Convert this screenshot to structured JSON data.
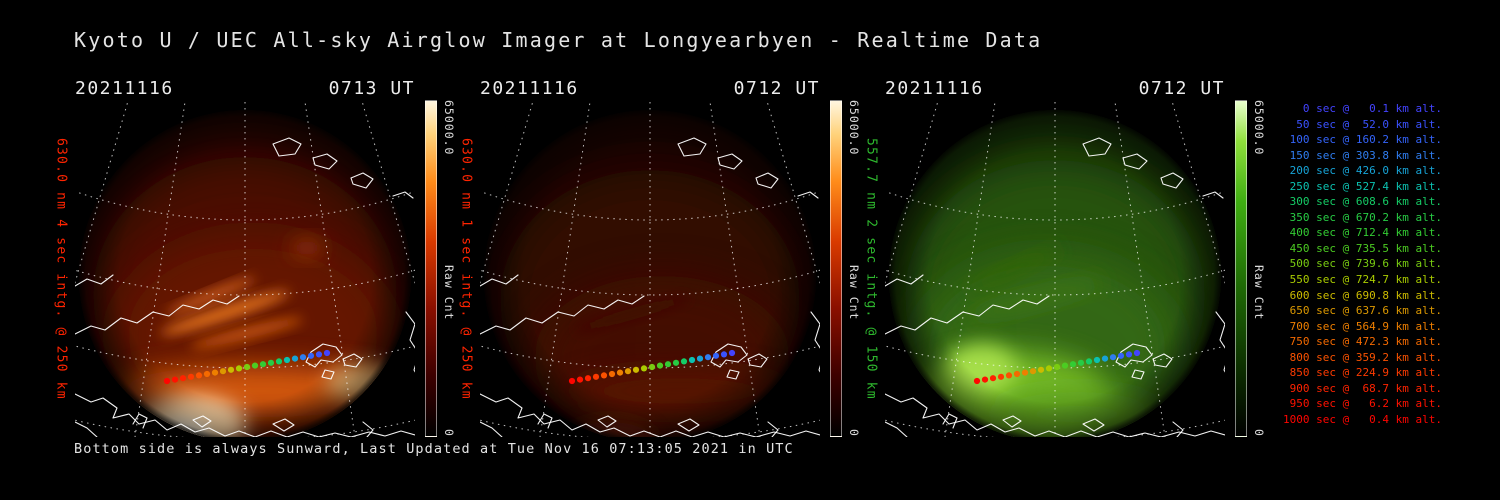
{
  "title": "Kyoto U / UEC All-sky Airglow Imager at Longyearbyen - Realtime Data",
  "footer": "Bottom side is always Sunward, Last Updated at Tue Nov 16 07:13:05 2021 in UTC",
  "panels": [
    {
      "date": "20211116",
      "time": "0713 UT",
      "left_label": "630.0 nm 4 sec intg. @ 250 km",
      "label_color": "#ff2400",
      "colorbar": {
        "max": "65000.0",
        "title": "Raw Cnt",
        "min": "0",
        "style": "heat"
      }
    },
    {
      "date": "20211116",
      "time": "0712 UT",
      "left_label": "630.0 nm 1 sec intg. @ 250 km",
      "label_color": "#ff2400",
      "colorbar": {
        "max": "65000.0",
        "title": "Raw Cnt",
        "min": "0",
        "style": "heat"
      }
    },
    {
      "date": "20211116",
      "time": "0712 UT",
      "left_label": "557.7 nm 2 sec intg. @ 150 km",
      "label_color": "#2eb82e",
      "colorbar": {
        "max": "65000.0",
        "title": "Raw Cnt",
        "min": "0",
        "style": "green"
      }
    }
  ],
  "legend": {
    "rows": [
      {
        "text": "   0 sec @   0.1 km alt.",
        "color": "#4343ff"
      },
      {
        "text": "  50 sec @  52.0 km alt.",
        "color": "#3a52ff"
      },
      {
        "text": " 100 sec @ 160.2 km alt.",
        "color": "#3464fa"
      },
      {
        "text": " 150 sec @ 303.8 km alt.",
        "color": "#2f7df0"
      },
      {
        "text": " 200 sec @ 426.0 km alt.",
        "color": "#17a3d6"
      },
      {
        "text": " 250 sec @ 527.4 km alt.",
        "color": "#0cc2b1"
      },
      {
        "text": " 300 sec @ 608.6 km alt.",
        "color": "#15cc66"
      },
      {
        "text": " 350 sec @ 670.2 km alt.",
        "color": "#27cc44"
      },
      {
        "text": " 400 sec @ 712.4 km alt.",
        "color": "#33cc33"
      },
      {
        "text": " 450 sec @ 735.5 km alt.",
        "color": "#4ccc22"
      },
      {
        "text": " 500 sec @ 739.6 km alt.",
        "color": "#79cc11"
      },
      {
        "text": " 550 sec @ 724.7 km alt.",
        "color": "#aacc00"
      },
      {
        "text": " 600 sec @ 690.8 km alt.",
        "color": "#ccbb00"
      },
      {
        "text": " 650 sec @ 637.6 km alt.",
        "color": "#dd9900"
      },
      {
        "text": " 700 sec @ 564.9 km alt.",
        "color": "#ee7f00"
      },
      {
        "text": " 750 sec @ 472.3 km alt.",
        "color": "#f56a00"
      },
      {
        "text": " 800 sec @ 359.2 km alt.",
        "color": "#fa5200"
      },
      {
        "text": " 850 sec @ 224.9 km alt.",
        "color": "#fd3a00"
      },
      {
        "text": " 900 sec @  68.7 km alt.",
        "color": "#ff2300"
      },
      {
        "text": " 950 sec @   6.2 km alt.",
        "color": "#ff1200"
      },
      {
        "text": "1000 sec @   0.4 km alt.",
        "color": "#ff0500"
      }
    ]
  },
  "chart_data": {
    "type": "heatmap",
    "title": "Kyoto U / UEC All-sky Airglow Imager at Longyearbyen - Realtime Data",
    "panels": [
      {
        "date": "20211116",
        "time_ut": "0713",
        "wavelength_nm": 630.0,
        "integration_sec": 4,
        "assumed_altitude_km": 250,
        "colorbar_label": "Raw Cnt",
        "colorbar_min": 0,
        "colorbar_max": 65000.0,
        "colormap": "red-heat"
      },
      {
        "date": "20211116",
        "time_ut": "0712",
        "wavelength_nm": 630.0,
        "integration_sec": 1,
        "assumed_altitude_km": 250,
        "colorbar_label": "Raw Cnt",
        "colorbar_min": 0,
        "colorbar_max": 65000.0,
        "colormap": "red-heat"
      },
      {
        "date": "20211116",
        "time_ut": "0712",
        "wavelength_nm": 557.7,
        "integration_sec": 2,
        "assumed_altitude_km": 150,
        "colorbar_label": "Raw Cnt",
        "colorbar_min": 0,
        "colorbar_max": 65000.0,
        "colormap": "green-heat"
      }
    ],
    "trajectory": {
      "time_sec": [
        0,
        50,
        100,
        150,
        200,
        250,
        300,
        350,
        400,
        450,
        500,
        550,
        600,
        650,
        700,
        750,
        800,
        850,
        900,
        950,
        1000
      ],
      "altitude_km": [
        0.1,
        52.0,
        160.2,
        303.8,
        426.0,
        527.4,
        608.6,
        670.2,
        712.4,
        735.5,
        739.6,
        724.7,
        690.8,
        637.6,
        564.9,
        472.3,
        359.2,
        224.9,
        68.7,
        6.2,
        0.4
      ]
    }
  }
}
